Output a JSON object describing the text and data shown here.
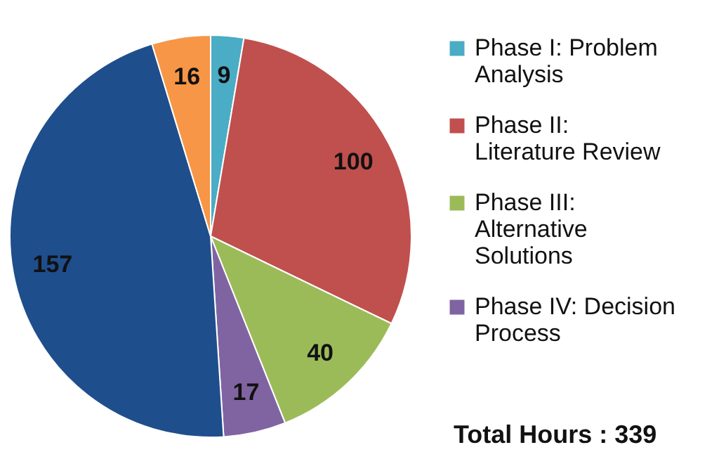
{
  "chart_data": {
    "type": "pie",
    "categories": [
      "Phase I: Problem Analysis",
      "Phase II: Literature Review",
      "Phase III: Alternative Solutions",
      "Phase IV: Decision Process",
      null,
      null
    ],
    "values": [
      9,
      100,
      40,
      17,
      157,
      16
    ],
    "colors": [
      "#4bacc6",
      "#c0504d",
      "#9bbb59",
      "#8064a2",
      "#1f4e8c",
      "#f79646"
    ],
    "data_labels": true,
    "legend": "right",
    "annotations": [
      "Total Hours : 339"
    ]
  }
}
